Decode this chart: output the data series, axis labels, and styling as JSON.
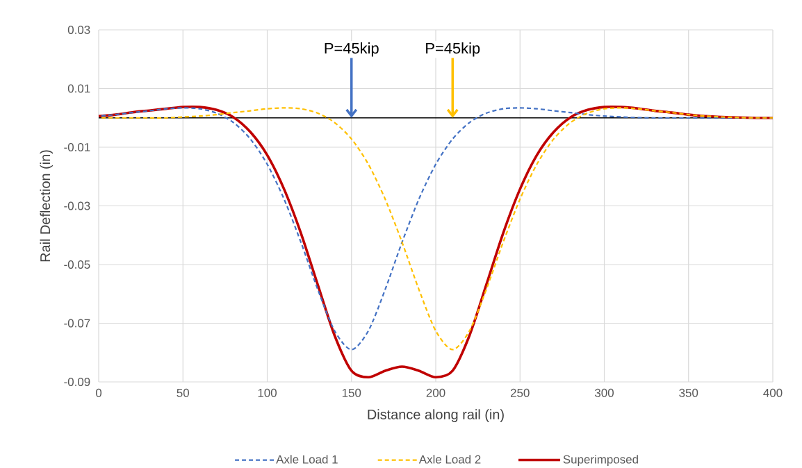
{
  "chart_data": {
    "type": "line",
    "xlabel": "Distance along rail (in)",
    "ylabel": "Rail Deflection (in)",
    "x": [
      0,
      10,
      20,
      30,
      40,
      50,
      60,
      70,
      80,
      90,
      100,
      110,
      120,
      130,
      140,
      150,
      160,
      170,
      180,
      190,
      200,
      210,
      220,
      230,
      240,
      250,
      260,
      270,
      280,
      290,
      300,
      310,
      320,
      330,
      340,
      350,
      360,
      370,
      380,
      390,
      400
    ],
    "series": [
      {
        "name": "Axle Load 1",
        "color": "#4472c4",
        "line_style": "dashed",
        "values": [
          0.0006,
          0.0011,
          0.0018,
          0.0024,
          0.0031,
          0.0034,
          0.0031,
          0.0016,
          -0.0016,
          -0.0072,
          -0.0158,
          -0.0277,
          -0.0424,
          -0.0585,
          -0.0726,
          -0.079,
          -0.0726,
          -0.0585,
          -0.0424,
          -0.0277,
          -0.0158,
          -0.0072,
          -0.0016,
          0.0016,
          0.0031,
          0.0034,
          0.0031,
          0.0024,
          0.0018,
          0.0011,
          0.0006,
          0.0003,
          0.0001,
          0,
          0,
          0,
          0,
          0,
          0,
          0,
          0
        ]
      },
      {
        "name": "Axle Load 2",
        "color": "#ffc000",
        "line_style": "dashed",
        "values": [
          0,
          0,
          0,
          0,
          0,
          0.0003,
          0.0006,
          0.0011,
          0.0018,
          0.0024,
          0.0031,
          0.0034,
          0.0031,
          0.0016,
          -0.0016,
          -0.0072,
          -0.0158,
          -0.0277,
          -0.0424,
          -0.0585,
          -0.0726,
          -0.079,
          -0.0726,
          -0.0585,
          -0.0424,
          -0.0277,
          -0.0158,
          -0.0072,
          -0.0016,
          0.0016,
          0.0031,
          0.0034,
          0.0031,
          0.0024,
          0.0018,
          0.0011,
          0.0006,
          0.0003,
          0.0001,
          0,
          0
        ]
      },
      {
        "name": "Superimposed",
        "color": "#c00000",
        "line_style": "solid",
        "values": [
          0.0006,
          0.0011,
          0.0019,
          0.0025,
          0.0031,
          0.0037,
          0.0037,
          0.0027,
          0.0002,
          -0.0048,
          -0.0127,
          -0.0243,
          -0.0393,
          -0.0569,
          -0.0742,
          -0.0862,
          -0.0884,
          -0.0862,
          -0.0848,
          -0.0862,
          -0.0884,
          -0.0862,
          -0.0742,
          -0.0569,
          -0.0393,
          -0.0243,
          -0.0127,
          -0.0048,
          0.0002,
          0.0027,
          0.0037,
          0.0037,
          0.0032,
          0.0024,
          0.0018,
          0.0011,
          0.0006,
          0.0003,
          0.0001,
          0,
          0
        ]
      }
    ],
    "xlim": [
      0,
      400
    ],
    "ylim": [
      -0.09,
      0.03
    ],
    "xticks": [
      0,
      50,
      100,
      150,
      200,
      250,
      300,
      350,
      400
    ],
    "yticks": [
      0.03,
      0.01,
      -0.01,
      -0.03,
      -0.05,
      -0.07,
      -0.09
    ],
    "ref_lines": [
      {
        "axis": "y",
        "value": 0,
        "color": "#000000"
      }
    ],
    "annotations": [
      {
        "text": "P=45kip",
        "x": 150,
        "y": 0
      },
      {
        "text": "P=45kip",
        "x": 210,
        "y": 0
      }
    ],
    "grid": true,
    "legend": "bottom"
  }
}
